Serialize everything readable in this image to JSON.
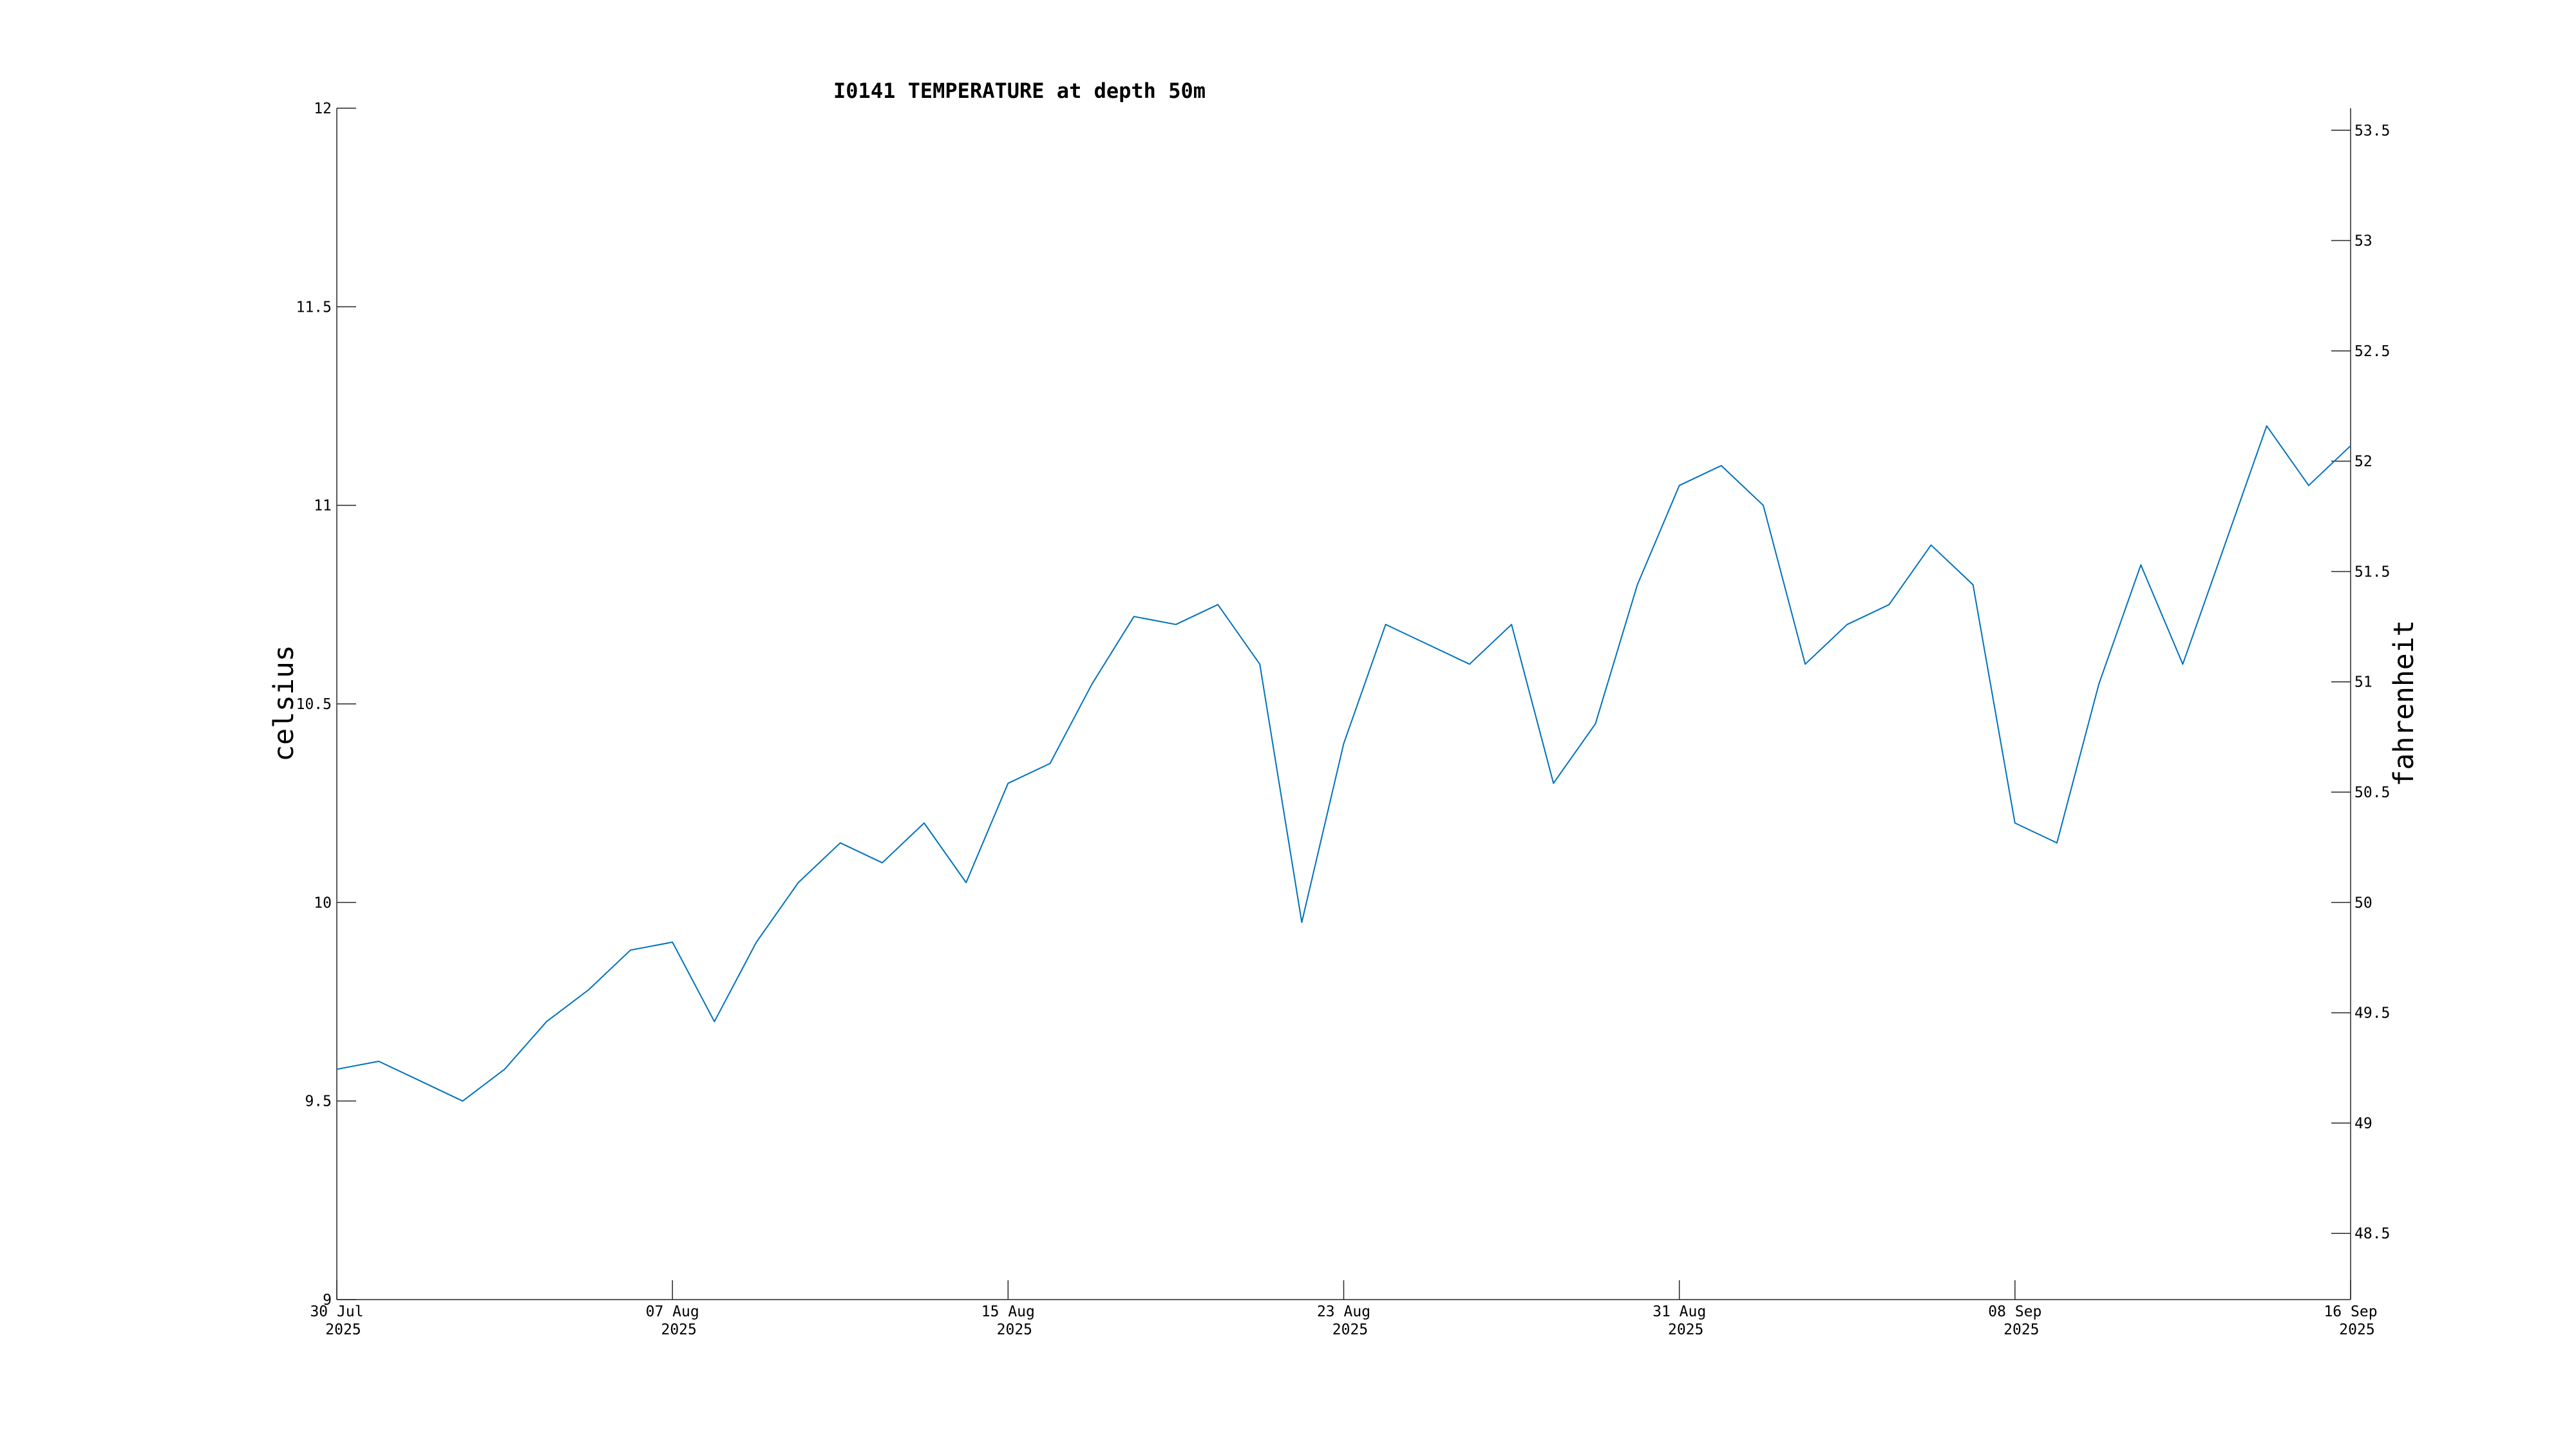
{
  "chart_data": {
    "type": "line",
    "title": "I0141 TEMPERATURE at depth 50m",
    "ylabel": "celsius",
    "y2label": "fahrenheit",
    "xlabel": "",
    "xlim": [
      "2025-07-30",
      "2025-09-16"
    ],
    "ylim": [
      9,
      12
    ],
    "y2lim": [
      48.2,
      53.6
    ],
    "grid": false,
    "line_color": "#0072BD",
    "x_ticks": [
      {
        "date": "2025-07-30",
        "line1": "30 Jul",
        "line2": "2025"
      },
      {
        "date": "2025-08-07",
        "line1": "07 Aug",
        "line2": "2025"
      },
      {
        "date": "2025-08-15",
        "line1": "15 Aug",
        "line2": "2025"
      },
      {
        "date": "2025-08-23",
        "line1": "23 Aug",
        "line2": "2025"
      },
      {
        "date": "2025-08-31",
        "line1": "31 Aug",
        "line2": "2025"
      },
      {
        "date": "2025-09-08",
        "line1": "08 Sep",
        "line2": "2025"
      },
      {
        "date": "2025-09-16",
        "line1": "16 Sep",
        "line2": "2025"
      }
    ],
    "y_ticks": [
      "9",
      "9.5",
      "10",
      "10.5",
      "11",
      "11.5",
      "12"
    ],
    "y2_ticks": [
      "48.5",
      "49",
      "49.5",
      "50",
      "50.5",
      "51",
      "51.5",
      "52",
      "52.5",
      "53",
      "53.5"
    ],
    "series": [
      {
        "values": [
          [
            "2025-07-30",
            9.58
          ],
          [
            "2025-07-31",
            9.6
          ],
          [
            "2025-08-01",
            9.55
          ],
          [
            "2025-08-02",
            9.5
          ],
          [
            "2025-08-03",
            9.58
          ],
          [
            "2025-08-04",
            9.7
          ],
          [
            "2025-08-05",
            9.78
          ],
          [
            "2025-08-06",
            9.88
          ],
          [
            "2025-08-07",
            9.9
          ],
          [
            "2025-08-08",
            9.7
          ],
          [
            "2025-08-09",
            9.9
          ],
          [
            "2025-08-10",
            10.05
          ],
          [
            "2025-08-11",
            10.15
          ],
          [
            "2025-08-12",
            10.1
          ],
          [
            "2025-08-13",
            10.2
          ],
          [
            "2025-08-14",
            10.05
          ],
          [
            "2025-08-15",
            10.3
          ],
          [
            "2025-08-16",
            10.35
          ],
          [
            "2025-08-17",
            10.55
          ],
          [
            "2025-08-18",
            10.72
          ],
          [
            "2025-08-19",
            10.7
          ],
          [
            "2025-08-20",
            10.75
          ],
          [
            "2025-08-21",
            10.6
          ],
          [
            "2025-08-22",
            9.95
          ],
          [
            "2025-08-23",
            10.4
          ],
          [
            "2025-08-24",
            10.7
          ],
          [
            "2025-08-25",
            10.65
          ],
          [
            "2025-08-26",
            10.6
          ],
          [
            "2025-08-27",
            10.7
          ],
          [
            "2025-08-28",
            10.3
          ],
          [
            "2025-08-29",
            10.45
          ],
          [
            "2025-08-30",
            10.8
          ],
          [
            "2025-08-31",
            11.05
          ],
          [
            "2025-09-01",
            11.1
          ],
          [
            "2025-09-02",
            11.0
          ],
          [
            "2025-09-03",
            10.6
          ],
          [
            "2025-09-04",
            10.7
          ],
          [
            "2025-09-05",
            10.75
          ],
          [
            "2025-09-06",
            10.9
          ],
          [
            "2025-09-07",
            10.8
          ],
          [
            "2025-09-08",
            10.2
          ],
          [
            "2025-09-09",
            10.15
          ],
          [
            "2025-09-10",
            10.55
          ],
          [
            "2025-09-11",
            10.85
          ],
          [
            "2025-09-12",
            10.6
          ],
          [
            "2025-09-13",
            10.9
          ],
          [
            "2025-09-14",
            11.2
          ],
          [
            "2025-09-15",
            11.05
          ],
          [
            "2025-09-16",
            11.15
          ]
        ]
      }
    ]
  }
}
